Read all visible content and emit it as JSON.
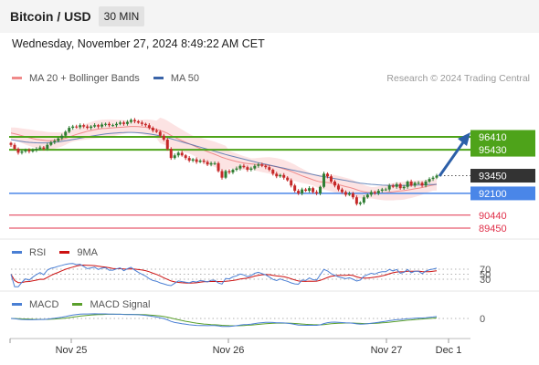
{
  "header": {
    "title": "Bitcoin / USD",
    "timeframe": "30 MIN"
  },
  "datetime": "Wednesday, November 27, 2024 8:49:22 AM CET",
  "credit": "Research © 2024 Trading Central",
  "legend": {
    "price": [
      {
        "label": "MA 20 + Bollinger Bands",
        "color": "#f08a8a"
      },
      {
        "label": "MA 50",
        "color": "#3a64a8"
      }
    ],
    "rsi": [
      {
        "label": "RSI",
        "color": "#4a7fd4"
      },
      {
        "label": "9MA",
        "color": "#cc1111"
      }
    ],
    "macd": [
      {
        "label": "MACD",
        "color": "#4a7fd4"
      },
      {
        "label": "MACD Signal",
        "color": "#5aa02c"
      }
    ]
  },
  "colors": {
    "resistance": "#4ea31a",
    "support": "#4a86e8",
    "current": "#333333",
    "lower": "#e0304a",
    "arrow": "#2c5fa8",
    "up": "#2e7d32",
    "down": "#c62828"
  },
  "chart_data": [
    {
      "type": "candlestick",
      "x_labels": [
        "Nov 25",
        "Nov 26",
        "Nov 27",
        "Dec 1"
      ],
      "ylim": [
        89000,
        98000
      ],
      "current_price": 93450,
      "levels": [
        {
          "value": 96410,
          "label": "96410",
          "kind": "resistance"
        },
        {
          "value": 95430,
          "label": "95430",
          "kind": "resistance"
        },
        {
          "value": 93450,
          "label": "93450",
          "kind": "current"
        },
        {
          "value": 92100,
          "label": "92100",
          "kind": "support"
        },
        {
          "value": 90440,
          "label": "90440",
          "kind": "lower"
        },
        {
          "value": 89450,
          "label": "89450",
          "kind": "lower"
        }
      ],
      "close": [
        95800,
        95500,
        95200,
        95300,
        95400,
        95300,
        95400,
        95500,
        95600,
        95500,
        95800,
        96000,
        96100,
        96300,
        96500,
        96800,
        97100,
        97200,
        97150,
        97300,
        97200,
        97100,
        97200,
        97300,
        97200,
        97350,
        97400,
        97300,
        97300,
        97400,
        97500,
        97400,
        97550,
        97700,
        97600,
        97500,
        97400,
        97300,
        97100,
        96900,
        96800,
        96500,
        96200,
        95500,
        94800,
        95000,
        95200,
        95000,
        94800,
        94600,
        94700,
        94500,
        94600,
        94500,
        94300,
        94400,
        94400,
        93800,
        93300,
        93800,
        93700,
        93900,
        94000,
        94200,
        94100,
        93900,
        94000,
        94200,
        94300,
        94200,
        94100,
        93900,
        93600,
        93400,
        93500,
        93300,
        93100,
        92700,
        92300,
        92100,
        92400,
        92300,
        92500,
        92200,
        92100,
        92600,
        93600,
        93400,
        93000,
        92700,
        92400,
        92200,
        92000,
        92100,
        91800,
        91300,
        91400,
        91800,
        92000,
        92200,
        92100,
        92300,
        92400,
        92400,
        92700,
        92600,
        92800,
        92500,
        92600,
        93000,
        92700,
        92900,
        92900,
        92700,
        93000,
        93200,
        93300,
        93450
      ],
      "ma20": [
        96700,
        96650,
        96580,
        96500,
        96420,
        96350,
        96280,
        96220,
        96180,
        96150,
        96120,
        96120,
        96140,
        96170,
        96220,
        96300,
        96400,
        96500,
        96600,
        96680,
        96760,
        96840,
        96900,
        96960,
        97000,
        97040,
        97060,
        97080,
        97100,
        97120,
        97140,
        97160,
        97180,
        97200,
        97200,
        97190,
        97170,
        97140,
        97100,
        97040,
        96980,
        96900,
        96800,
        96680,
        96520,
        96380,
        96250,
        96120,
        96000,
        95880,
        95760,
        95640,
        95520,
        95400,
        95290,
        95180,
        95080,
        94970,
        94850,
        94760,
        94680,
        94600,
        94530,
        94470,
        94420,
        94380,
        94350,
        94320,
        94300,
        94280,
        94260,
        94230,
        94180,
        94120,
        94050,
        93970,
        93880,
        93780,
        93670,
        93550,
        93440,
        93340,
        93240,
        93140,
        93050,
        92980,
        92960,
        92930,
        92890,
        92830,
        92760,
        92690,
        92620,
        92560,
        92480,
        92380,
        92290,
        92230,
        92180,
        92150,
        92130,
        92130,
        92140,
        92160,
        92190,
        92220,
        92260,
        92280,
        92310,
        92360,
        92400,
        92450,
        92500,
        92550,
        92620,
        92680,
        92740,
        92800
      ],
      "ma50": [
        96200,
        96150,
        96100,
        96060,
        96020,
        95990,
        95970,
        95960,
        95950,
        95950,
        95960,
        95980,
        96000,
        96030,
        96070,
        96110,
        96160,
        96210,
        96260,
        96310,
        96360,
        96410,
        96460,
        96510,
        96550,
        96590,
        96630,
        96660,
        96690,
        96710,
        96730,
        96740,
        96750,
        96750,
        96740,
        96720,
        96700,
        96670,
        96630,
        96590,
        96540,
        96480,
        96420,
        96350,
        96270,
        96190,
        96110,
        96030,
        95950,
        95870,
        95790,
        95710,
        95630,
        95550,
        95470,
        95390,
        95310,
        95230,
        95150,
        95070,
        94990,
        94920,
        94850,
        94780,
        94710,
        94640,
        94570,
        94500,
        94440,
        94380,
        94320,
        94260,
        94200,
        94140,
        94080,
        94020,
        93960,
        93900,
        93840,
        93780,
        93720,
        93660,
        93600,
        93540,
        93480,
        93420,
        93380,
        93330,
        93280,
        93230,
        93180,
        93130,
        93080,
        93030,
        92980,
        92930,
        92880,
        92850,
        92820,
        92790,
        92770,
        92750,
        92730,
        92720,
        92710,
        92700,
        92700,
        92700,
        92700,
        92710,
        92720,
        92730,
        92740,
        92750,
        92760,
        92770,
        92780,
        92790
      ]
    },
    {
      "type": "line",
      "title": "RSI",
      "levels": [
        70,
        50,
        30
      ],
      "level_labels": [
        "70",
        "50",
        "30"
      ]
    },
    {
      "type": "line",
      "title": "MACD",
      "levels": [
        0
      ],
      "level_labels": [
        "0"
      ]
    }
  ]
}
